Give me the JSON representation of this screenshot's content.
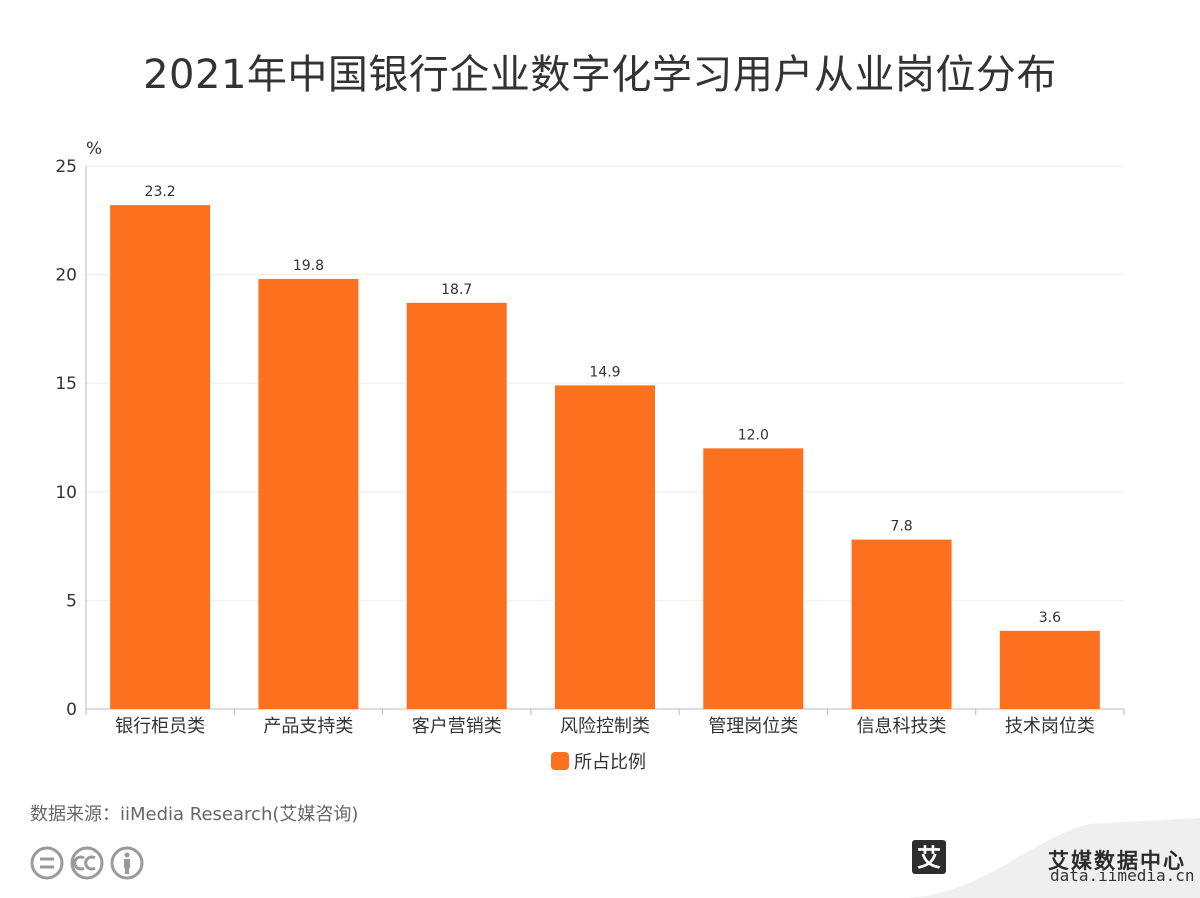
{
  "title": "2021年中国银行企业数字化学习用户从业岗位分布",
  "source": "数据来源：iiMedia Research(艾媒咨询)",
  "brand": {
    "name": "艾媒数据中心",
    "logo_char": "艾",
    "url": "data.iimedia.cn"
  },
  "colors": {
    "bar": "#FD711E",
    "grid": "#eeeeee",
    "axis": "#bbbbbb",
    "text": "#333333"
  },
  "chart_data": {
    "type": "bar",
    "ylabel": "%",
    "ylim": [
      0,
      25
    ],
    "yticks": [
      0,
      5,
      10,
      15,
      20,
      25
    ],
    "grid": true,
    "legend_position": "bottom",
    "categories": [
      "银行柜员类",
      "产品支持类",
      "客户营销类",
      "风险控制类",
      "管理岗位类",
      "信息科技类",
      "技术岗位类"
    ],
    "series": [
      {
        "name": "所占比例",
        "values": [
          23.2,
          19.8,
          18.7,
          14.9,
          12.0,
          7.8,
          3.6
        ]
      }
    ]
  }
}
